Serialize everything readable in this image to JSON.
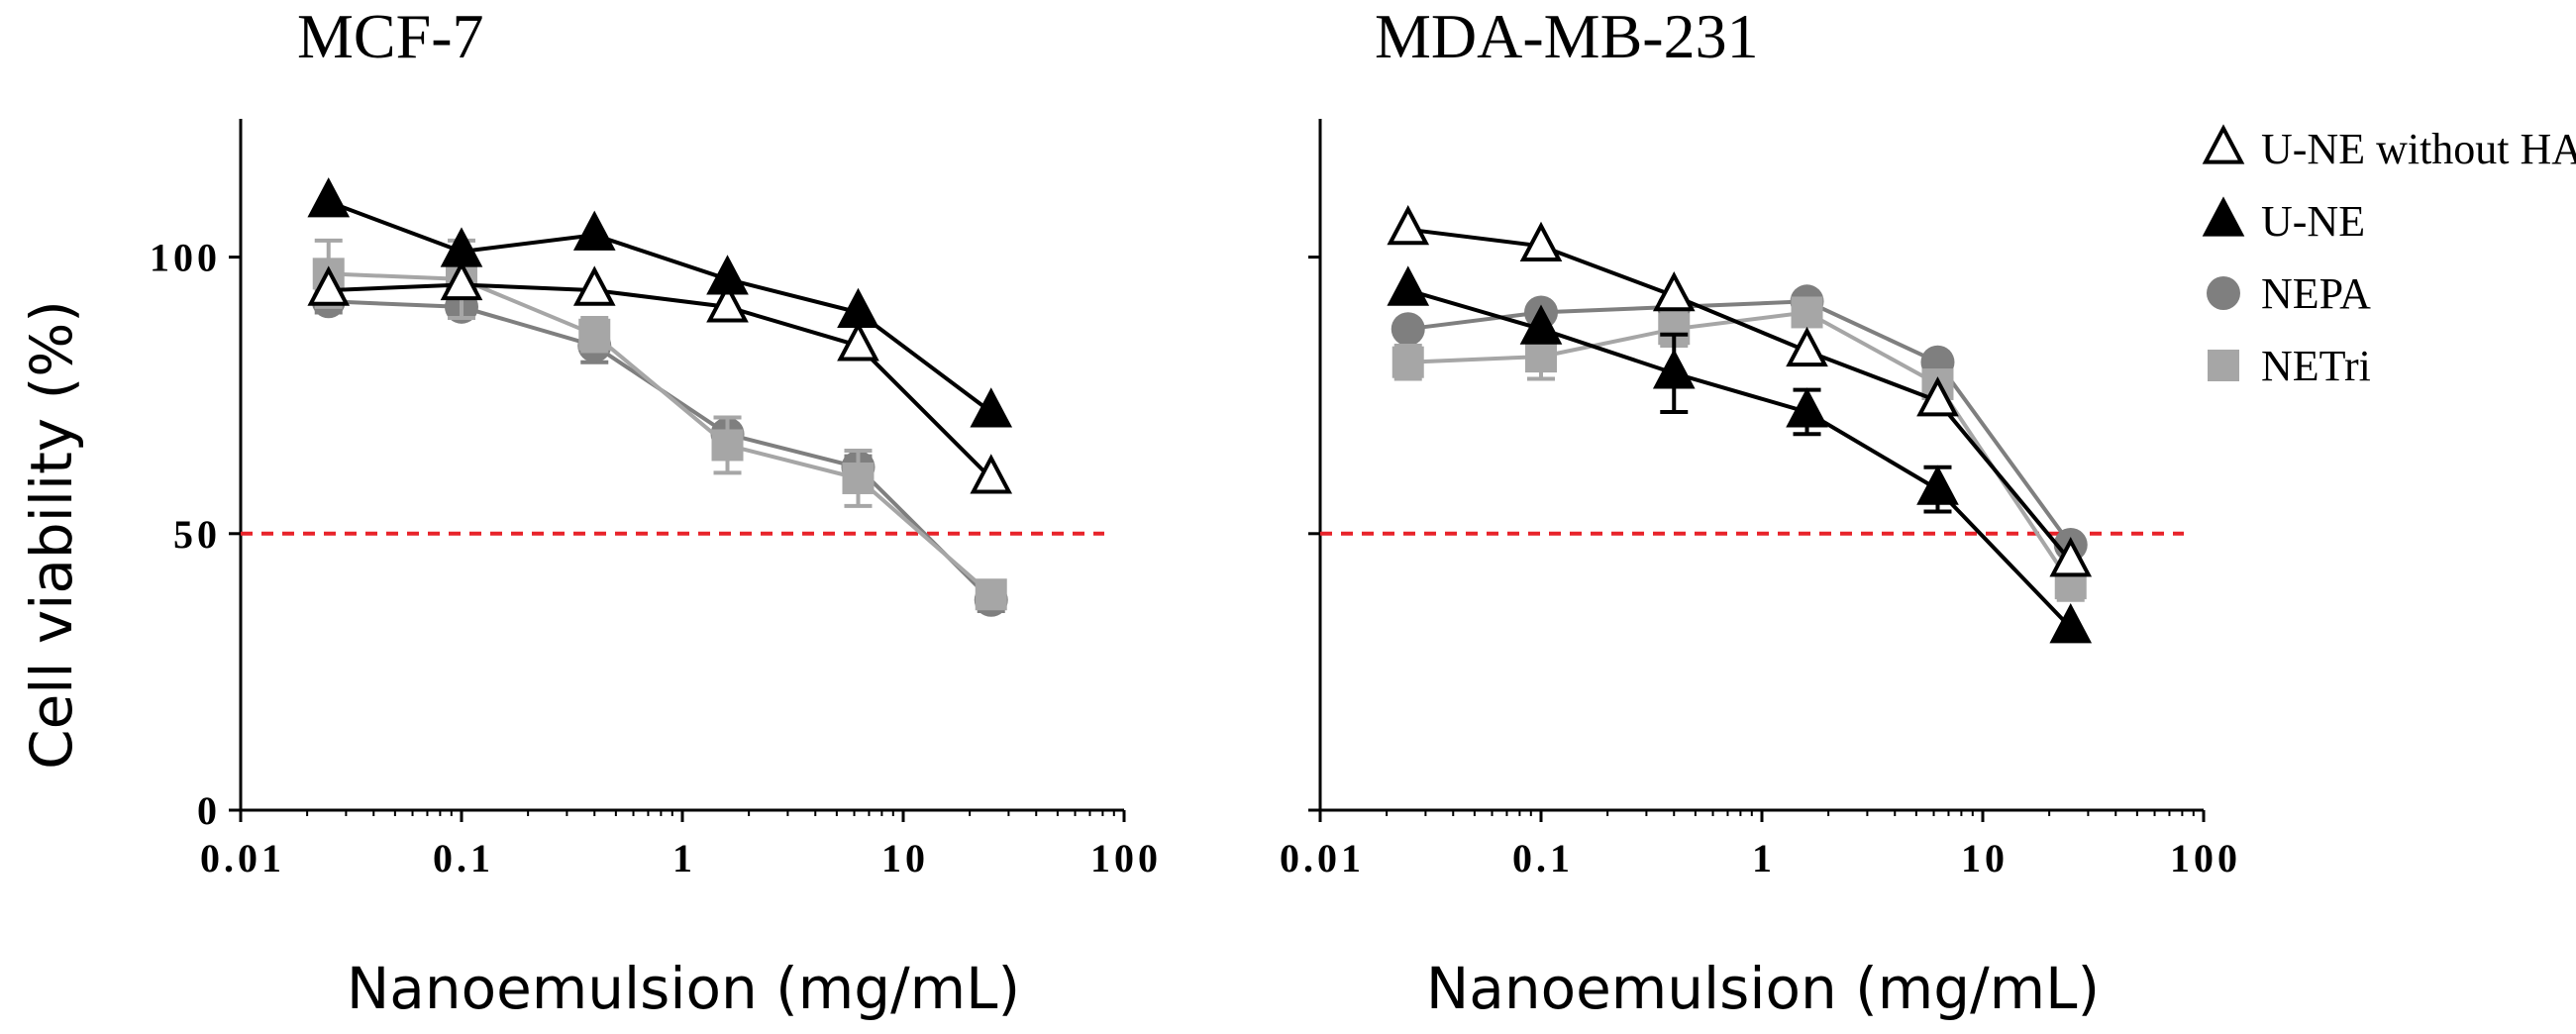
{
  "chart_data": [
    {
      "type": "line",
      "title": "MCF-7",
      "xlabel": "Nanoemulsion (mg/mL)",
      "ylabel": "Cell viability (%)",
      "xscale": "log",
      "xlim": [
        0.01,
        100
      ],
      "ylim": [
        0,
        125
      ],
      "x_ticks": [
        "0.01",
        "0.1",
        "1",
        "10",
        "100"
      ],
      "y_ticks": [
        "0",
        "50",
        "100"
      ],
      "threshold_line": {
        "y": 50,
        "color": "#e8232a",
        "style": "dashed"
      },
      "x": [
        0.025,
        0.1,
        0.4,
        1.6,
        6.25,
        25
      ],
      "series": [
        {
          "name": "U-NE without HA",
          "marker": "open-triangle",
          "color": "#000000",
          "values": [
            94,
            95,
            94,
            91,
            84,
            60
          ],
          "errors": [
            0,
            0,
            0,
            0,
            0,
            0
          ]
        },
        {
          "name": "U-NE",
          "marker": "filled-triangle",
          "color": "#000000",
          "values": [
            110,
            101,
            104,
            96,
            90,
            72
          ],
          "errors": [
            0,
            0,
            0,
            0,
            0,
            0
          ]
        },
        {
          "name": "NEPA",
          "marker": "circle",
          "color": "#7f7f7f",
          "values": [
            92,
            91,
            84,
            68,
            62,
            38
          ],
          "errors": [
            2,
            2,
            3,
            3,
            2,
            2
          ]
        },
        {
          "name": "NETri",
          "marker": "square",
          "color": "#a6a6a6",
          "values": [
            97,
            96,
            86,
            66,
            60,
            39
          ],
          "errors": [
            6,
            7,
            3,
            5,
            5,
            2
          ]
        }
      ]
    },
    {
      "type": "line",
      "title": "MDA-MB-231",
      "xlabel": "Nanoemulsion (mg/mL)",
      "ylabel": "",
      "xscale": "log",
      "xlim": [
        0.01,
        100
      ],
      "ylim": [
        0,
        125
      ],
      "x_ticks": [
        "0.01",
        "0.1",
        "1",
        "10",
        "100"
      ],
      "y_ticks": [],
      "threshold_line": {
        "y": 50,
        "color": "#e8232a",
        "style": "dashed"
      },
      "x": [
        0.025,
        0.1,
        0.4,
        1.6,
        6.25,
        25
      ],
      "series": [
        {
          "name": "U-NE without HA",
          "marker": "open-triangle",
          "color": "#000000",
          "values": [
            105,
            102,
            93,
            83,
            74,
            45
          ],
          "errors": [
            0,
            0,
            0,
            0,
            0,
            0
          ]
        },
        {
          "name": "U-NE",
          "marker": "filled-triangle",
          "color": "#000000",
          "values": [
            94,
            87,
            79,
            72,
            58,
            33
          ],
          "errors": [
            0,
            0,
            7,
            4,
            4,
            0
          ]
        },
        {
          "name": "NEPA",
          "marker": "circle",
          "color": "#7f7f7f",
          "values": [
            87,
            90,
            91,
            92,
            81,
            48
          ],
          "errors": [
            0,
            0,
            0,
            0,
            0,
            0
          ]
        },
        {
          "name": "NETri",
          "marker": "square",
          "color": "#a6a6a6",
          "values": [
            81,
            82,
            87,
            90,
            77,
            41
          ],
          "errors": [
            3,
            4,
            3,
            2,
            2,
            3
          ]
        }
      ],
      "legend": {
        "placement": "top-right",
        "entries": [
          "U-NE without HA",
          "U-NE",
          "NEPA",
          "NETri"
        ]
      }
    }
  ]
}
